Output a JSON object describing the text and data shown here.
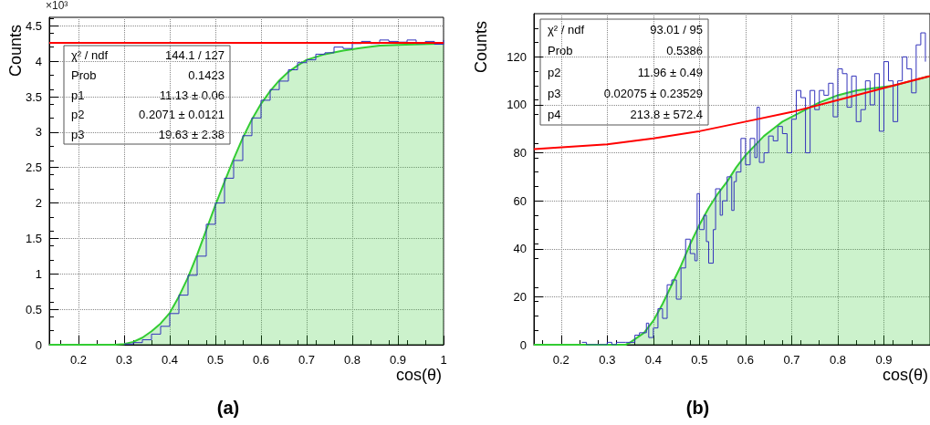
{
  "chart_data": [
    {
      "type": "step",
      "title": "(a)",
      "xlabel": "cos(θ)",
      "ylabel": "Counts",
      "xlim": [
        0.136,
        1
      ],
      "xticks": [
        0.2,
        0.3,
        0.4,
        0.5,
        0.6,
        0.7,
        0.8,
        0.9,
        1
      ],
      "ylim": [
        0,
        4.62
      ],
      "yticks": [
        0,
        0.5,
        1,
        1.5,
        2,
        2.5,
        3,
        3.5,
        4,
        4.5
      ],
      "grid": true,
      "annotations": [
        "×10³",
        "χ² / ndf",
        "144.1 / 127",
        "Prob",
        "0.1423",
        "p1",
        "11.13 ± 0.06",
        "p2",
        "0.2071 ± 0.0121",
        "p3",
        "19.63 ± 2.38"
      ],
      "series": [
        {
          "type": "area",
          "color": "#33cc33",
          "x": [
            0.136,
            0.28,
            0.3,
            0.32,
            0.34,
            0.36,
            0.38,
            0.4,
            0.42,
            0.44,
            0.46,
            0.48,
            0.5,
            0.52,
            0.54,
            0.56,
            0.58,
            0.6,
            0.62,
            0.64,
            0.66,
            0.68,
            0.7,
            0.74,
            0.78,
            0.82,
            0.86,
            0.9,
            0.95,
            1
          ],
          "values": [
            0,
            0,
            0.01,
            0.04,
            0.1,
            0.19,
            0.3,
            0.45,
            0.68,
            0.95,
            1.27,
            1.62,
            1.97,
            2.3,
            2.62,
            2.92,
            3.18,
            3.4,
            3.58,
            3.73,
            3.85,
            3.94,
            4.02,
            4.1,
            4.15,
            4.19,
            4.22,
            4.23,
            4.24,
            4.25
          ]
        },
        {
          "color": "#3333bb",
          "x": [
            0.3,
            0.32,
            0.34,
            0.36,
            0.38,
            0.4,
            0.42,
            0.44,
            0.46,
            0.48,
            0.5,
            0.52,
            0.54,
            0.56,
            0.58,
            0.6,
            0.62,
            0.64,
            0.66,
            0.68,
            0.7,
            0.72,
            0.74,
            0.76,
            0.78,
            0.8,
            0.82,
            0.84,
            0.86,
            0.88,
            0.9,
            0.92,
            0.94,
            0.96,
            0.98,
            1
          ],
          "values": [
            0.01,
            0.03,
            0.07,
            0.15,
            0.26,
            0.44,
            0.7,
            0.98,
            1.25,
            1.7,
            2,
            2.35,
            2.6,
            2.95,
            3.2,
            3.45,
            3.6,
            3.72,
            3.88,
            3.98,
            4.02,
            4.1,
            4.12,
            4.2,
            4.18,
            4.25,
            4.28,
            4.25,
            4.3,
            4.28,
            4.27,
            4.3,
            4.25,
            4.28,
            4.24,
            4.3
          ]
        },
        {
          "type": "line",
          "color": "#ff0000",
          "x": [
            0.136,
            1
          ],
          "values": [
            4.26,
            4.26
          ]
        }
      ]
    },
    {
      "type": "step",
      "title": "(b)",
      "xlabel": "cos(θ)",
      "ylabel": "Counts",
      "xlim": [
        0.141,
        1
      ],
      "xticks": [
        0.2,
        0.3,
        0.4,
        0.5,
        0.6,
        0.7,
        0.8,
        0.9
      ],
      "ylim": [
        0,
        138
      ],
      "yticks": [
        0,
        20,
        40,
        60,
        80,
        100,
        120
      ],
      "grid": true,
      "annotations": [
        "χ² / ndf",
        "93.01 / 95",
        "Prob",
        "0.5386",
        "p2",
        "11.96 ± 0.49",
        "p3",
        "0.02075 ± 0.23529",
        "p4",
        "213.8 ± 572.4"
      ],
      "series": [
        {
          "type": "area",
          "color": "#33cc33",
          "x": [
            0.141,
            0.34,
            0.35,
            0.38,
            0.4,
            0.42,
            0.44,
            0.46,
            0.48,
            0.5,
            0.52,
            0.54,
            0.56,
            0.58,
            0.6,
            0.62,
            0.64,
            0.66,
            0.68,
            0.7,
            0.72,
            0.74,
            0.76,
            0.8,
            0.84,
            0.88,
            0.92,
            0.96,
            1
          ],
          "values": [
            0,
            0,
            1,
            5,
            10,
            17,
            25,
            33,
            42,
            50,
            57,
            63,
            68,
            74,
            79,
            83,
            87,
            90,
            93,
            95,
            97,
            99,
            101,
            104,
            106,
            107,
            108,
            110,
            112
          ]
        },
        {
          "color": "#3333bb",
          "x": [
            0.245,
            0.255,
            0.3,
            0.31,
            0.32,
            0.34,
            0.36,
            0.37,
            0.385,
            0.39,
            0.4,
            0.41,
            0.42,
            0.43,
            0.44,
            0.45,
            0.46,
            0.47,
            0.48,
            0.49,
            0.495,
            0.5,
            0.51,
            0.515,
            0.52,
            0.53,
            0.535,
            0.545,
            0.55,
            0.56,
            0.57,
            0.575,
            0.58,
            0.59,
            0.6,
            0.61,
            0.62,
            0.625,
            0.63,
            0.64,
            0.65,
            0.66,
            0.67,
            0.68,
            0.69,
            0.7,
            0.71,
            0.72,
            0.73,
            0.74,
            0.75,
            0.76,
            0.77,
            0.78,
            0.79,
            0.8,
            0.81,
            0.82,
            0.83,
            0.84,
            0.85,
            0.86,
            0.87,
            0.88,
            0.89,
            0.9,
            0.91,
            0.92,
            0.93,
            0.94,
            0.95,
            0.96,
            0.97,
            0.98,
            0.99
          ],
          "values": [
            1,
            0,
            1,
            0,
            1,
            1,
            4,
            5,
            9,
            3,
            7,
            15,
            11,
            25,
            27,
            19,
            32,
            44,
            38,
            35,
            63,
            48,
            54,
            43,
            34,
            48,
            65,
            54,
            60,
            70,
            56,
            68,
            72,
            86,
            75,
            86,
            78,
            99,
            76,
            80,
            87,
            85,
            91,
            88,
            80,
            94,
            106,
            103,
            80,
            106,
            98,
            106,
            104,
            109,
            95,
            115,
            113,
            99,
            112,
            93,
            98,
            110,
            100,
            113,
            89,
            118,
            110,
            93,
            110,
            120,
            115,
            105,
            125,
            130,
            118
          ]
        },
        {
          "type": "line",
          "color": "#ff0000",
          "x": [
            0.141,
            0.3,
            0.4,
            0.5,
            0.6,
            0.7,
            0.8,
            0.9,
            1
          ],
          "values": [
            81.5,
            83.5,
            86,
            89,
            93,
            97,
            102,
            107,
            112
          ]
        }
      ]
    }
  ]
}
